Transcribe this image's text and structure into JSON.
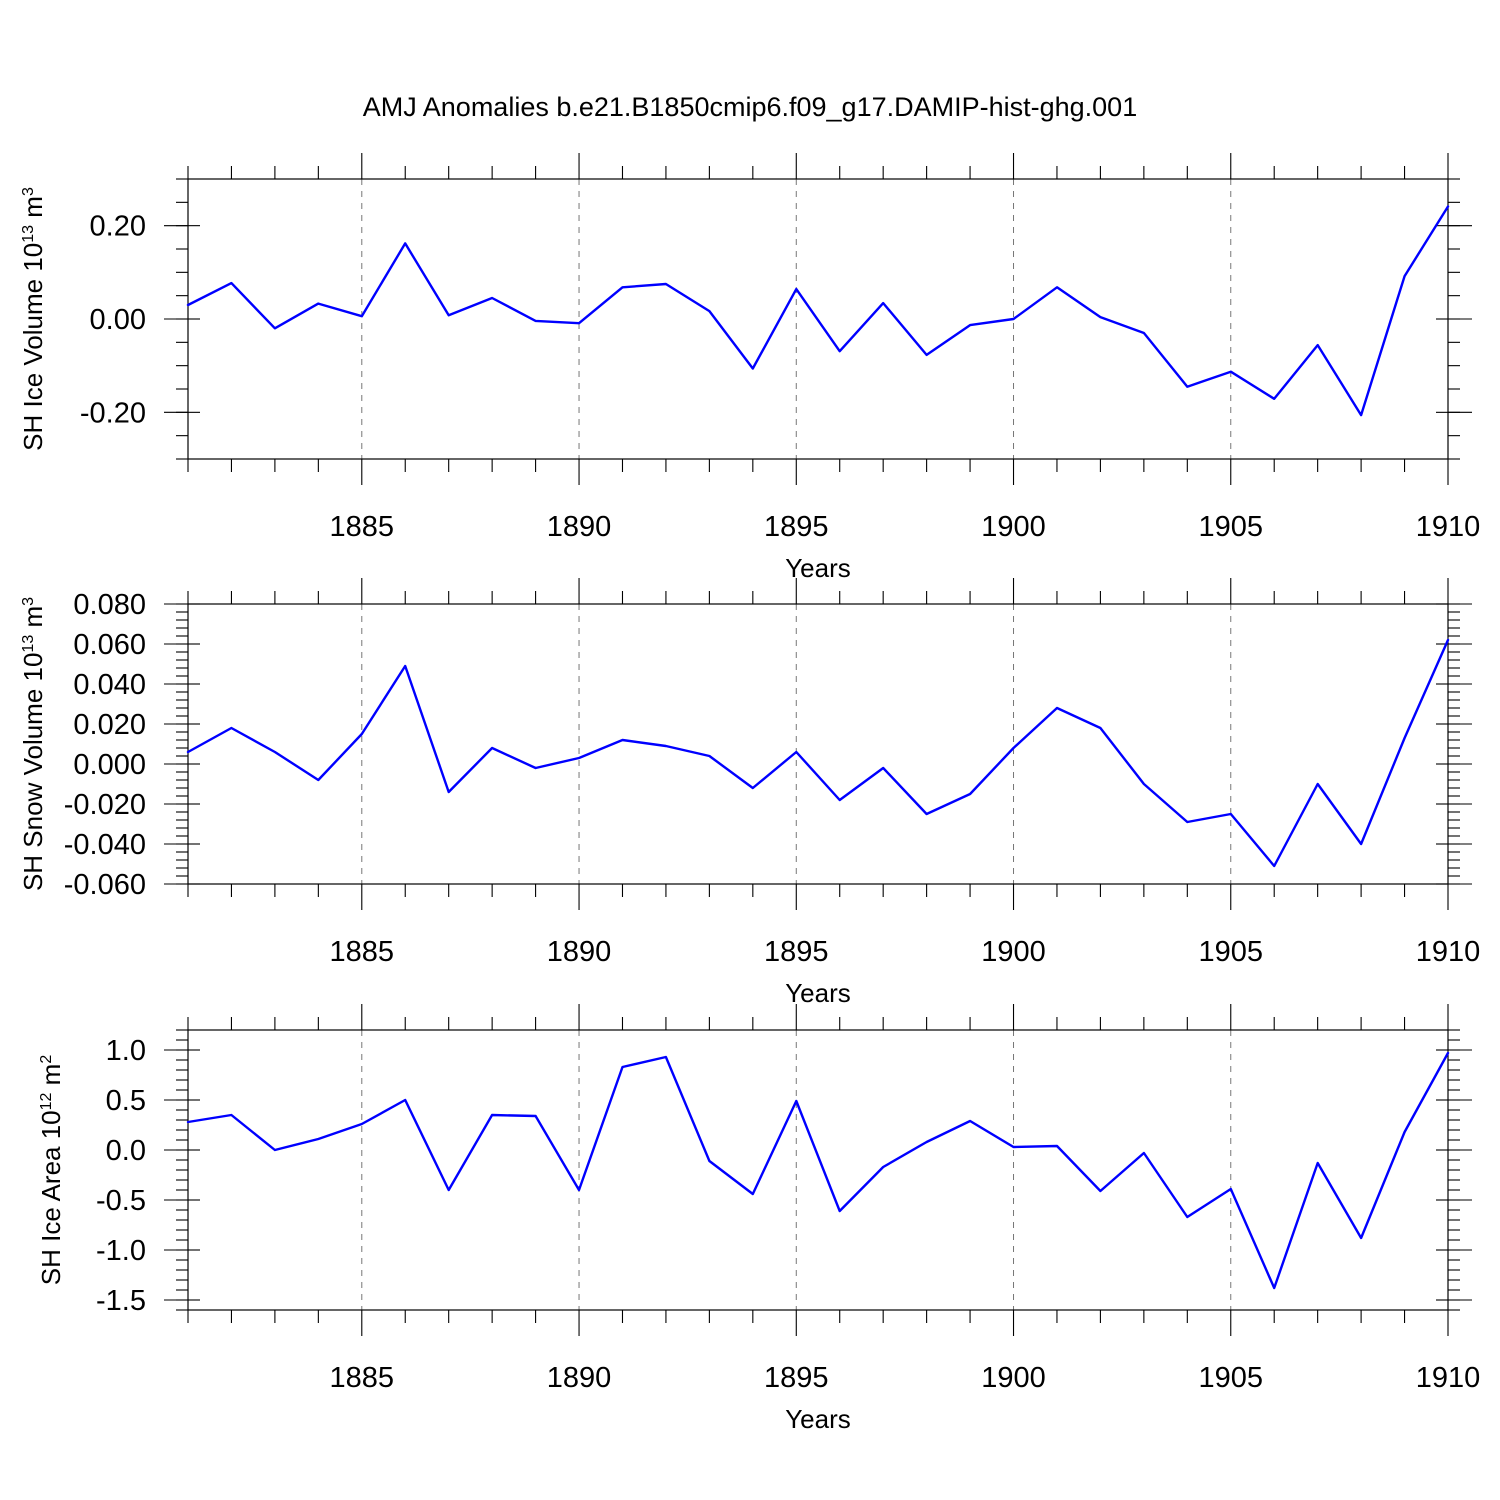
{
  "title": "AMJ Anomalies b.e21.B1850cmip6.f09_g17.DAMIP-hist-ghg.001",
  "colors": {
    "line": "#0000ff",
    "axis": "#000000",
    "grid": "#777777"
  },
  "chart_data": [
    {
      "type": "line",
      "ylabel_prefix": "SH Ice Volume 10",
      "ylabel_exp": "13",
      "ylabel_unit": " m",
      "ylabel_unit_exp": "3",
      "xlabel": "Years",
      "xlim": [
        1881,
        1910
      ],
      "ylim": [
        -0.3,
        0.3
      ],
      "yticks": [
        0.2,
        0.0,
        -0.2
      ],
      "ytick_labels": [
        "0.20",
        "0.00",
        "-0.20"
      ],
      "yminor_step": 0.05,
      "xticks": [
        1885,
        1890,
        1895,
        1900,
        1905,
        1910
      ],
      "xtick_labels": [
        "1885",
        "1890",
        "1895",
        "1900",
        "1905",
        "1910"
      ],
      "x": [
        1881,
        1882,
        1883,
        1884,
        1885,
        1886,
        1887,
        1888,
        1889,
        1890,
        1891,
        1892,
        1893,
        1894,
        1895,
        1896,
        1897,
        1898,
        1899,
        1900,
        1901,
        1902,
        1903,
        1904,
        1905,
        1906,
        1907,
        1908,
        1909,
        1910
      ],
      "values": [
        0.03,
        0.077,
        -0.02,
        0.033,
        0.006,
        0.162,
        0.008,
        0.045,
        -0.004,
        -0.009,
        0.068,
        0.075,
        0.017,
        -0.106,
        0.064,
        -0.069,
        0.034,
        -0.077,
        -0.013,
        0.0,
        0.068,
        0.004,
        -0.03,
        -0.145,
        -0.113,
        -0.171,
        -0.056,
        -0.206,
        0.092,
        0.241
      ]
    },
    {
      "type": "line",
      "ylabel_prefix": "SH Snow Volume 10",
      "ylabel_exp": "13",
      "ylabel_unit": " m",
      "ylabel_unit_exp": "3",
      "xlabel": "Years",
      "xlim": [
        1881,
        1910
      ],
      "ylim": [
        -0.06,
        0.08
      ],
      "yticks": [
        0.08,
        0.06,
        0.04,
        0.02,
        0.0,
        -0.02,
        -0.04,
        -0.06
      ],
      "ytick_labels": [
        "0.080",
        "0.060",
        "0.040",
        "0.020",
        "0.000",
        "-0.020",
        "-0.040",
        "-0.060"
      ],
      "yminor_step": 0.004,
      "xticks": [
        1885,
        1890,
        1895,
        1900,
        1905,
        1910
      ],
      "xtick_labels": [
        "1885",
        "1890",
        "1895",
        "1900",
        "1905",
        "1910"
      ],
      "x": [
        1881,
        1882,
        1883,
        1884,
        1885,
        1886,
        1887,
        1888,
        1889,
        1890,
        1891,
        1892,
        1893,
        1894,
        1895,
        1896,
        1897,
        1898,
        1899,
        1900,
        1901,
        1902,
        1903,
        1904,
        1905,
        1906,
        1907,
        1908,
        1909,
        1910
      ],
      "values": [
        0.006,
        0.018,
        0.006,
        -0.008,
        0.015,
        0.049,
        -0.014,
        0.008,
        -0.002,
        0.003,
        0.012,
        0.009,
        0.004,
        -0.012,
        0.006,
        -0.018,
        -0.002,
        -0.025,
        -0.015,
        0.008,
        0.028,
        0.018,
        -0.01,
        -0.029,
        -0.025,
        -0.051,
        -0.01,
        -0.04,
        0.013,
        0.062
      ]
    },
    {
      "type": "line",
      "ylabel_prefix": "SH Ice Area 10",
      "ylabel_exp": "12",
      "ylabel_unit": " m",
      "ylabel_unit_exp": "2",
      "xlabel": "Years",
      "xlim": [
        1881,
        1910
      ],
      "ylim": [
        -1.6,
        1.2
      ],
      "yticks": [
        1.0,
        0.5,
        0.0,
        -0.5,
        -1.0,
        -1.5
      ],
      "ytick_labels": [
        "1.0",
        "0.5",
        "0.0",
        "-0.5",
        "-1.0",
        "-1.5"
      ],
      "yminor_step": 0.1,
      "xticks": [
        1885,
        1890,
        1895,
        1900,
        1905,
        1910
      ],
      "xtick_labels": [
        "1885",
        "1890",
        "1895",
        "1900",
        "1905",
        "1910"
      ],
      "x": [
        1881,
        1882,
        1883,
        1884,
        1885,
        1886,
        1887,
        1888,
        1889,
        1890,
        1891,
        1892,
        1893,
        1894,
        1895,
        1896,
        1897,
        1898,
        1899,
        1900,
        1901,
        1902,
        1903,
        1904,
        1905,
        1906,
        1907,
        1908,
        1909,
        1910
      ],
      "values": [
        0.28,
        0.35,
        0.0,
        0.11,
        0.26,
        0.5,
        -0.4,
        0.35,
        0.34,
        -0.4,
        0.83,
        0.93,
        -0.11,
        -0.44,
        0.49,
        -0.61,
        -0.17,
        0.08,
        0.29,
        0.03,
        0.04,
        -0.41,
        -0.03,
        -0.67,
        -0.39,
        -1.38,
        -0.13,
        -0.88,
        0.18,
        0.97
      ]
    }
  ]
}
